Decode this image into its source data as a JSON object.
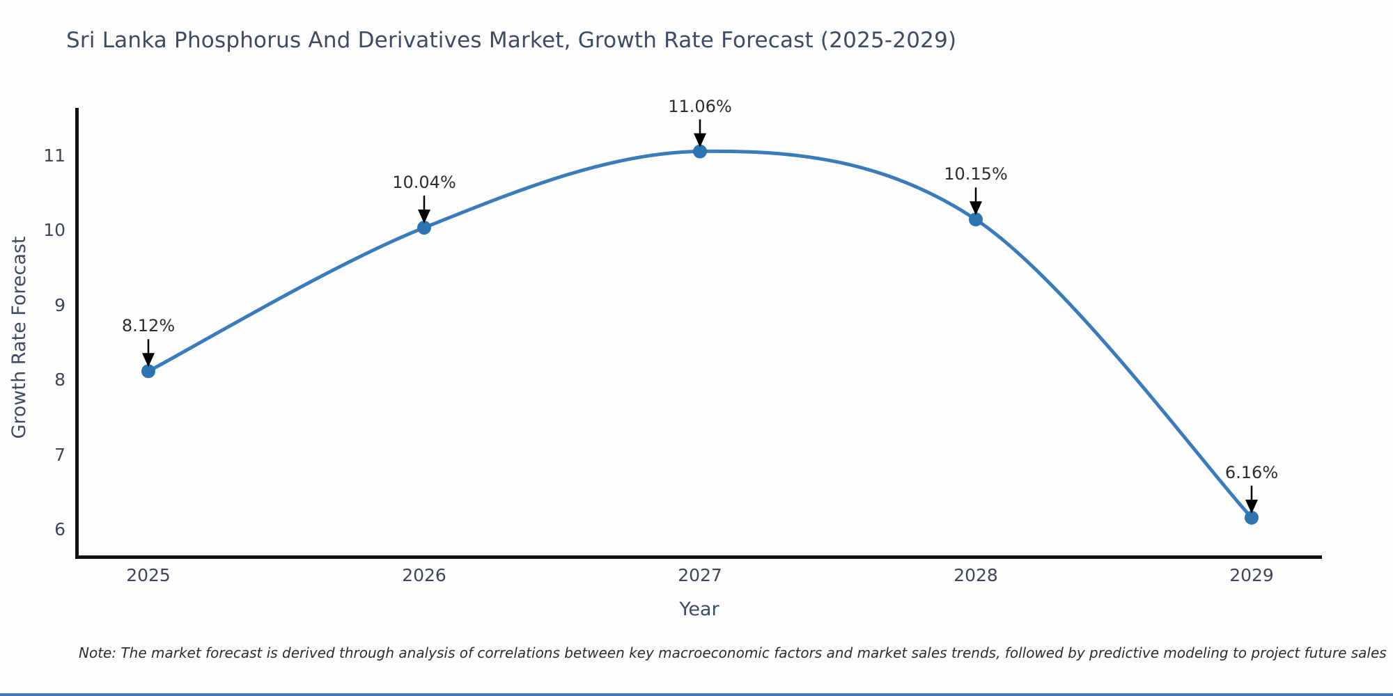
{
  "title": "Sri Lanka Phosphorus And Derivatives Market, Growth Rate Forecast (2025-2029)",
  "footnote": "Note: The market forecast is derived through analysis of correlations between key macroeconomic factors and market sales trends, followed by predictive modeling to project future sales",
  "colors": {
    "line": "#3a7cba",
    "marker": "#2f74b2",
    "title_text": "#3f4a63",
    "axis_title_text": "#3f4a63",
    "tick_text": "#3e4757",
    "annotation_text": "#2d2d2d",
    "arrow": "#000000",
    "spine": "#111111",
    "bottom_bar": "#4576b8"
  },
  "chart_data": {
    "type": "line",
    "title": "Sri Lanka Phosphorus And Derivatives Market, Growth Rate Forecast (2025-2029)",
    "xlabel": "Year",
    "ylabel": "Growth Rate Forecast",
    "categories": [
      "2025",
      "2026",
      "2027",
      "2028",
      "2029"
    ],
    "series": [
      {
        "name": "Growth Rate Forecast",
        "values": [
          8.12,
          10.04,
          11.06,
          10.15,
          6.16
        ],
        "point_labels": [
          "8.12%",
          "10.04%",
          "11.06%",
          "10.15%",
          "6.16%"
        ]
      }
    ],
    "y_ticks": [
      11,
      10,
      9,
      8,
      7,
      6
    ],
    "ylim": [
      5.62,
      11.9
    ],
    "grid": false,
    "legend_position": "none",
    "annotations_style": "value label with downward arrow to each point",
    "curve_style": "smooth spline with circular markers"
  }
}
